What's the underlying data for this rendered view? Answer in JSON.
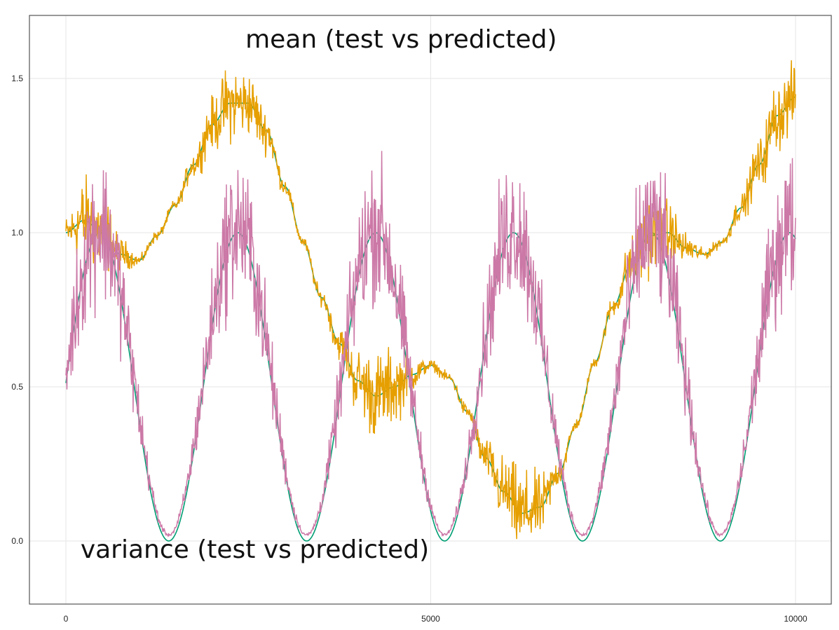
{
  "chart_data": {
    "type": "line",
    "xlim": [
      0,
      10000
    ],
    "ylim": [
      -0.2,
      1.7
    ],
    "x_ticks": [
      0,
      5000,
      10000
    ],
    "y_ticks": [
      0.0,
      0.5,
      1.0,
      1.5
    ],
    "x_tick_labels": [
      "0",
      "5000",
      "10000"
    ],
    "y_tick_labels": [
      "0.0",
      "0.5",
      "1.0",
      "1.5"
    ],
    "grid": true,
    "annotations": [
      {
        "text": "mean (test vs predicted)",
        "x": 2460,
        "y": 1.6
      },
      {
        "text": "variance (test vs predicted)",
        "x": 200,
        "y": -0.055
      }
    ],
    "colors": {
      "test": "#009e73",
      "mean": "#e69f00",
      "variance": "#cc79a7"
    },
    "series": [
      {
        "key": "mean_test",
        "color": "#009e73",
        "x": [
          0,
          250,
          500,
          750,
          1000,
          1250,
          1500,
          1750,
          2000,
          2250,
          2500,
          2750,
          3000,
          3250,
          3500,
          3750,
          4000,
          4250,
          4500,
          4750,
          5000,
          5250,
          5500,
          5750,
          6000,
          6250,
          6500,
          6750,
          7000,
          7250,
          7500,
          7750,
          8000,
          8250,
          8500,
          8750,
          9000,
          9250,
          9500,
          9750,
          10000
        ],
        "y": [
          1.0,
          1.04,
          1.0,
          0.93,
          0.91,
          0.99,
          1.09,
          1.22,
          1.35,
          1.42,
          1.42,
          1.33,
          1.15,
          0.97,
          0.79,
          0.64,
          0.52,
          0.47,
          0.5,
          0.54,
          0.57,
          0.53,
          0.42,
          0.27,
          0.16,
          0.09,
          0.11,
          0.22,
          0.38,
          0.58,
          0.76,
          0.9,
          0.99,
          1.0,
          0.95,
          0.93,
          0.97,
          1.08,
          1.22,
          1.38,
          1.44
        ]
      },
      {
        "key": "variance_test",
        "color": "#009e73",
        "formula": "sin^2(pi*(x - 1410)/1890)",
        "x_start": 0,
        "x_end": 10000,
        "y_max": 1.0,
        "y_min": 0.0
      },
      {
        "key": "mean_predicted",
        "color": "#e69f00",
        "x": [
          0,
          250,
          500,
          750,
          1000,
          1250,
          1500,
          1750,
          2000,
          2250,
          2500,
          2750,
          3000,
          3250,
          3500,
          3750,
          4000,
          4250,
          4500,
          4750,
          5000,
          5250,
          5500,
          5750,
          6000,
          6250,
          6500,
          6750,
          7000,
          7250,
          7500,
          7750,
          8000,
          8250,
          8500,
          8750,
          9000,
          9250,
          9500,
          9750,
          10000
        ],
        "y": [
          1.0,
          1.04,
          1.0,
          0.93,
          0.91,
          0.99,
          1.09,
          1.22,
          1.35,
          1.42,
          1.42,
          1.33,
          1.15,
          0.97,
          0.79,
          0.64,
          0.52,
          0.47,
          0.5,
          0.54,
          0.57,
          0.53,
          0.42,
          0.27,
          0.16,
          0.09,
          0.11,
          0.22,
          0.38,
          0.58,
          0.76,
          0.9,
          0.99,
          1.0,
          0.95,
          0.93,
          0.97,
          1.08,
          1.22,
          1.38,
          1.44
        ],
        "noise_amplitude": [
          0.06,
          0.16,
          0.16,
          0.06,
          0.02,
          0.02,
          0.02,
          0.05,
          0.1,
          0.14,
          0.12,
          0.08,
          0.03,
          0.02,
          0.03,
          0.06,
          0.12,
          0.16,
          0.14,
          0.06,
          0.02,
          0.02,
          0.03,
          0.07,
          0.13,
          0.16,
          0.12,
          0.05,
          0.02,
          0.02,
          0.04,
          0.1,
          0.14,
          0.12,
          0.06,
          0.02,
          0.02,
          0.05,
          0.1,
          0.13,
          0.12
        ]
      },
      {
        "key": "variance_predicted",
        "color": "#cc79a7",
        "formula": "sin^2(pi*(x - 1410)/1890) + 0.02",
        "noise": "proportional to value, spikes up to 1.49"
      }
    ]
  }
}
